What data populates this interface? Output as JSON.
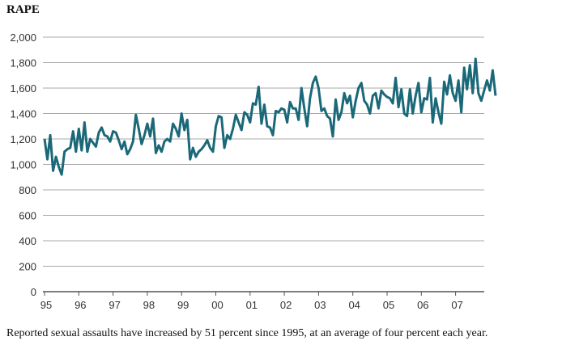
{
  "chart_data": {
    "type": "line",
    "title": "RAPE",
    "caption": "Reported sexual assaults have increased by 51 percent since 1995, at an average of four percent each year.",
    "xlabel": "",
    "ylabel": "",
    "ylim": [
      0,
      2000
    ],
    "y_ticks": [
      0,
      200,
      400,
      600,
      800,
      1000,
      1200,
      1400,
      1600,
      1800,
      2000
    ],
    "y_tick_labels": [
      "0",
      "200",
      "400",
      "600",
      "800",
      "1,000",
      "1,200",
      "1,400",
      "1,600",
      "1,800",
      "2,000"
    ],
    "x_tick_labels": [
      "95",
      "96",
      "97",
      "98",
      "99",
      "00",
      "01",
      "02",
      "03",
      "04",
      "05",
      "06",
      "07"
    ],
    "x_start_label": "95",
    "months_per_year": 12,
    "grid": true,
    "color": "#1a6878",
    "series": [
      {
        "name": "",
        "values": [
          1200,
          1040,
          1230,
          950,
          1060,
          980,
          920,
          1100,
          1120,
          1130,
          1260,
          1100,
          1280,
          1110,
          1330,
          1100,
          1200,
          1170,
          1140,
          1250,
          1290,
          1230,
          1220,
          1180,
          1260,
          1250,
          1190,
          1120,
          1180,
          1080,
          1120,
          1180,
          1390,
          1280,
          1160,
          1230,
          1320,
          1220,
          1360,
          1090,
          1150,
          1100,
          1180,
          1200,
          1180,
          1320,
          1280,
          1220,
          1400,
          1270,
          1350,
          1040,
          1130,
          1060,
          1100,
          1120,
          1150,
          1190,
          1130,
          1100,
          1300,
          1380,
          1370,
          1130,
          1230,
          1200,
          1280,
          1390,
          1330,
          1270,
          1410,
          1390,
          1330,
          1480,
          1470,
          1610,
          1320,
          1470,
          1300,
          1290,
          1230,
          1420,
          1410,
          1440,
          1430,
          1330,
          1490,
          1440,
          1440,
          1350,
          1600,
          1440,
          1300,
          1520,
          1640,
          1690,
          1600,
          1420,
          1440,
          1380,
          1360,
          1220,
          1510,
          1350,
          1410,
          1560,
          1480,
          1540,
          1370,
          1500,
          1600,
          1640,
          1500,
          1470,
          1400,
          1540,
          1560,
          1440,
          1580,
          1550,
          1530,
          1520,
          1480,
          1680,
          1450,
          1590,
          1400,
          1380,
          1590,
          1400,
          1540,
          1640,
          1410,
          1520,
          1510,
          1680,
          1330,
          1520,
          1410,
          1320,
          1650,
          1550,
          1700,
          1560,
          1500,
          1660,
          1410,
          1760,
          1590,
          1780,
          1560,
          1830,
          1560,
          1500,
          1580,
          1660,
          1580,
          1740,
          1540
        ]
      }
    ]
  }
}
